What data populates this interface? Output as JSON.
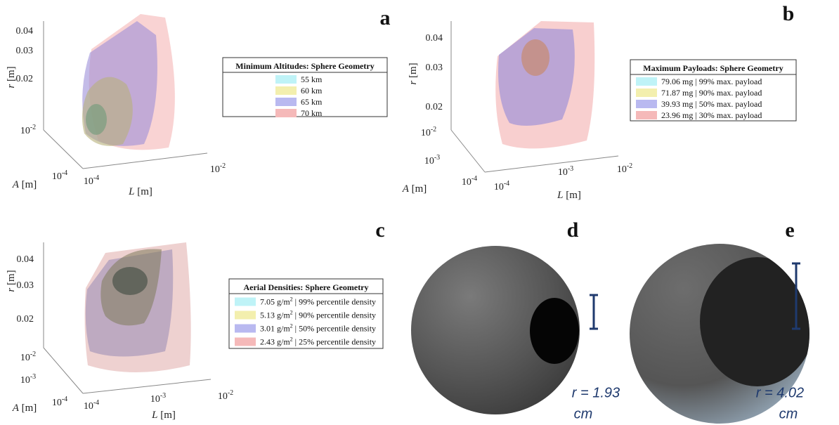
{
  "panels": [
    {
      "label": "a",
      "r_axis": {
        "symbol": "r",
        "unit": "[m]",
        "ticks": [
          "0.04",
          "0.03",
          "0.02"
        ]
      },
      "a_axis": {
        "symbol": "A",
        "unit": "[m]",
        "ticks": [
          {
            "base": "10",
            "exp": "-2"
          },
          {
            "base": "10",
            "exp": "-4"
          }
        ]
      },
      "l_axis": {
        "symbol": "L",
        "unit": "[m]",
        "ticks": [
          {
            "base": "10",
            "exp": "-4"
          },
          {
            "base": "10",
            "exp": "-2"
          }
        ]
      },
      "legend": {
        "title": "Minimum Altitudes: Sphere Geometry",
        "entries": [
          {
            "color": "#bff3f7",
            "text": "55 km"
          },
          {
            "color": "#f3efae",
            "text": "60 km"
          },
          {
            "color": "#b9b9f0",
            "text": "65 km"
          },
          {
            "color": "#f5b9b9",
            "text": "70 km"
          }
        ]
      }
    },
    {
      "label": "b",
      "r_axis": {
        "symbol": "r",
        "unit": "[m]",
        "ticks": [
          "0.04",
          "0.03",
          "0.02"
        ]
      },
      "a_axis": {
        "symbol": "A",
        "unit": "[m]",
        "ticks": [
          {
            "base": "10",
            "exp": "-2"
          },
          {
            "base": "10",
            "exp": "-3"
          },
          {
            "base": "10",
            "exp": "-4"
          }
        ]
      },
      "l_axis": {
        "symbol": "L",
        "unit": "[m]",
        "ticks": [
          {
            "base": "10",
            "exp": "-4"
          },
          {
            "base": "10",
            "exp": "-3"
          },
          {
            "base": "10",
            "exp": "-2"
          }
        ]
      },
      "legend": {
        "title": "Maximum Payloads: Sphere Geometry",
        "entries": [
          {
            "color": "#bff3f7",
            "text": "79.06 mg | 99% max. payload"
          },
          {
            "color": "#f3efae",
            "text": "71.87 mg | 90% max. payload"
          },
          {
            "color": "#b9b9f0",
            "text": "39.93 mg | 50% max. payload"
          },
          {
            "color": "#f5b9b9",
            "text": "23.96 mg | 30% max. payload"
          }
        ]
      }
    },
    {
      "label": "c",
      "r_axis": {
        "symbol": "r",
        "unit": "[m]",
        "ticks": [
          "0.04",
          "0.03",
          "0.02"
        ]
      },
      "a_axis": {
        "symbol": "A",
        "unit": "[m]",
        "ticks": [
          {
            "base": "10",
            "exp": "-2"
          },
          {
            "base": "10",
            "exp": "-3"
          },
          {
            "base": "10",
            "exp": "-4"
          }
        ]
      },
      "l_axis": {
        "symbol": "L",
        "unit": "[m]",
        "ticks": [
          {
            "base": "10",
            "exp": "-4"
          },
          {
            "base": "10",
            "exp": "-3"
          },
          {
            "base": "10",
            "exp": "-2"
          }
        ]
      },
      "legend": {
        "title": "Aerial Densities: Sphere Geometry",
        "entries": [
          {
            "color": "#bff3f7",
            "text": "7.05 g/m",
            "sup": "2",
            "post": " | 99% percentile density"
          },
          {
            "color": "#f3efae",
            "text": "5.13 g/m",
            "sup": "2",
            "post": " | 90% percentile density"
          },
          {
            "color": "#b9b9f0",
            "text": "3.01 g/m",
            "sup": "2",
            "post": " | 50% percentile density"
          },
          {
            "color": "#f5b9b9",
            "text": "2.43 g/m",
            "sup": "2",
            "post": " | 25% percentile density"
          }
        ]
      }
    }
  ],
  "renders": [
    {
      "label": "d",
      "radius": "r = 1.93",
      "unit": "cm"
    },
    {
      "label": "e",
      "radius": "r = 4.02",
      "unit": "cm"
    }
  ]
}
